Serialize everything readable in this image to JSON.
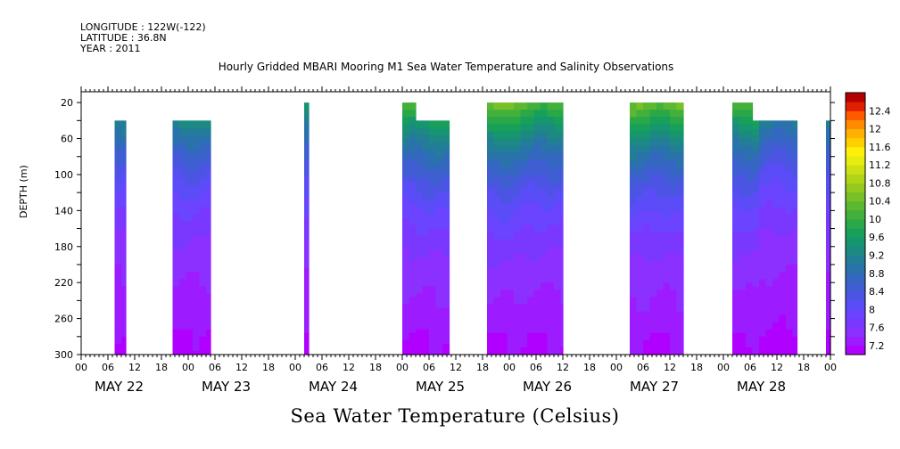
{
  "header": {
    "longitude": "LONGITUDE : 122W(-122)",
    "latitude": "LATITUDE : 36.8N",
    "year": "YEAR : 2011"
  },
  "chart_data": {
    "type": "heatmap",
    "title": "Hourly Gridded MBARI Mooring M1 Sea Water Temperature and Salinity Observations",
    "xlabel": "Sea Water Temperature (Celsius)",
    "ylabel": "DEPTH (m)",
    "x_range_hours": [
      0,
      168
    ],
    "x_start": "May 22 00",
    "x_hour_ticks": [
      "00",
      "06",
      "12",
      "18",
      "00",
      "06",
      "12",
      "18",
      "00",
      "06",
      "12",
      "18",
      "00",
      "06",
      "12",
      "18",
      "00",
      "06",
      "12",
      "18",
      "00",
      "06",
      "12",
      "18",
      "00",
      "06",
      "12",
      "18",
      "00"
    ],
    "day_labels": [
      "MAY 22",
      "MAY 23",
      "MAY 24",
      "MAY 25",
      "MAY 26",
      "MAY 27",
      "MAY 28"
    ],
    "ylim": [
      300,
      8
    ],
    "y_ticks": [
      20,
      60,
      100,
      140,
      180,
      220,
      260,
      300
    ],
    "colorbar": {
      "levels": [
        7.2,
        7.4,
        7.6,
        7.8,
        8.0,
        8.2,
        8.4,
        8.6,
        8.8,
        9.0,
        9.2,
        9.4,
        9.6,
        9.8,
        10.0,
        10.2,
        10.4,
        10.6,
        10.8,
        11.0,
        11.2,
        11.4,
        11.6,
        11.8,
        12.0,
        12.2,
        12.4,
        12.6
      ],
      "tick_labels": [
        "7.2",
        "7.6",
        "8",
        "8.4",
        "8.8",
        "9.2",
        "9.6",
        "10",
        "10.4",
        "10.8",
        "11.2",
        "11.6",
        "12",
        "12.4"
      ],
      "colors": [
        "#b000ff",
        "#9c1cff",
        "#8c30ff",
        "#7a38ff",
        "#6a44ff",
        "#5a4cf6",
        "#4c54e4",
        "#3e5ed2",
        "#3468c0",
        "#2a72ac",
        "#227e96",
        "#1c8a82",
        "#16966e",
        "#18a05a",
        "#2aa848",
        "#42b03a",
        "#5cb830",
        "#78c028",
        "#94ca20",
        "#b0d418",
        "#cce014",
        "#e6ec10",
        "#fff00a",
        "#ffd000",
        "#ffb000",
        "#ff8c00",
        "#ff5a00",
        "#e02000",
        "#b40000"
      ]
    },
    "data_segments_hours": [
      {
        "start": 7.5,
        "end": 10,
        "top_depth": 40
      },
      {
        "start": 20.5,
        "end": 29,
        "top_depth": 40
      },
      {
        "start": 50,
        "end": 51,
        "top_depth": 20
      },
      {
        "start": 72,
        "end": 75,
        "top_depth": 20
      },
      {
        "start": 75,
        "end": 82.5,
        "top_depth": 40
      },
      {
        "start": 91,
        "end": 108,
        "top_depth": 20
      },
      {
        "start": 123,
        "end": 135,
        "top_depth": 20
      },
      {
        "start": 146,
        "end": 150.5,
        "top_depth": 20
      },
      {
        "start": 150.5,
        "end": 160.5,
        "top_depth": 40
      },
      {
        "start": 167,
        "end": 168,
        "top_depth": 40
      }
    ]
  }
}
